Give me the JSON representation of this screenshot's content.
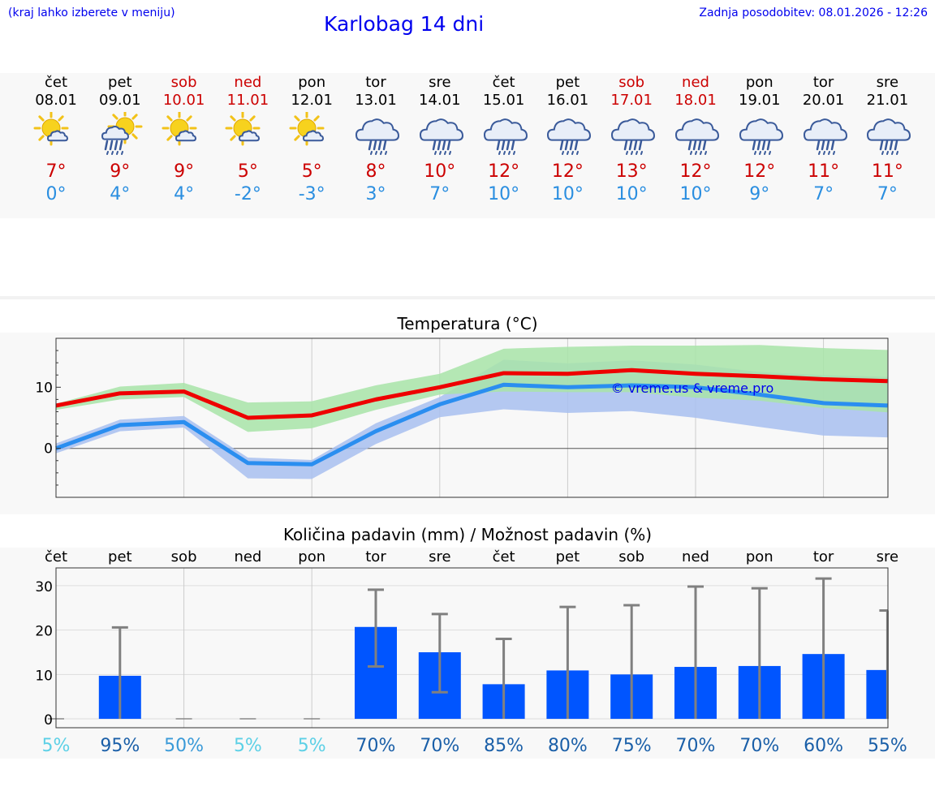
{
  "header": {
    "left_note": "(kraj lahko izberete v meniju)",
    "title": "Karlobag 14 dni",
    "updated": "Zadnja posodobitev: 08.01.2026 - 12:26"
  },
  "days": [
    {
      "name": "čet",
      "date": "08.01",
      "weekend": false,
      "icon": "sun-cloud-icon",
      "max": "7°",
      "min": "0°"
    },
    {
      "name": "pet",
      "date": "09.01",
      "weekend": false,
      "icon": "sun-cloud-rain-icon",
      "max": "9°",
      "min": "4°"
    },
    {
      "name": "sob",
      "date": "10.01",
      "weekend": true,
      "icon": "sun-cloud-icon",
      "max": "9°",
      "min": "4°"
    },
    {
      "name": "ned",
      "date": "11.01",
      "weekend": true,
      "icon": "sun-cloud-icon",
      "max": "5°",
      "min": "-2°"
    },
    {
      "name": "pon",
      "date": "12.01",
      "weekend": false,
      "icon": "sun-cloud-icon",
      "max": "5°",
      "min": "-3°"
    },
    {
      "name": "tor",
      "date": "13.01",
      "weekend": false,
      "icon": "rain-cloud-icon",
      "max": "8°",
      "min": "3°"
    },
    {
      "name": "sre",
      "date": "14.01",
      "weekend": false,
      "icon": "rain-cloud-icon",
      "max": "10°",
      "min": "7°"
    },
    {
      "name": "čet",
      "date": "15.01",
      "weekend": false,
      "icon": "rain-cloud-icon",
      "max": "12°",
      "min": "10°"
    },
    {
      "name": "pet",
      "date": "16.01",
      "weekend": false,
      "icon": "rain-cloud-icon",
      "max": "12°",
      "min": "10°"
    },
    {
      "name": "sob",
      "date": "17.01",
      "weekend": true,
      "icon": "rain-cloud-icon",
      "max": "13°",
      "min": "10°"
    },
    {
      "name": "ned",
      "date": "18.01",
      "weekend": true,
      "icon": "rain-cloud-icon",
      "max": "12°",
      "min": "10°"
    },
    {
      "name": "pon",
      "date": "19.01",
      "weekend": false,
      "icon": "rain-cloud-icon",
      "max": "12°",
      "min": "9°"
    },
    {
      "name": "tor",
      "date": "20.01",
      "weekend": false,
      "icon": "rain-cloud-icon",
      "max": "11°",
      "min": "7°"
    },
    {
      "name": "sre",
      "date": "21.01",
      "weekend": false,
      "icon": "rain-cloud-icon",
      "max": "11°",
      "min": "7°"
    }
  ],
  "colors": {
    "max_line": "#ee0000",
    "min_line": "#2a8ef0",
    "max_band": "#a8e4a8",
    "min_band": "#a8c0f0",
    "bar": "#0055ff",
    "error": "#808080",
    "weekend": "#cc0000",
    "link": "#0000ee"
  },
  "chart_data": [
    {
      "type": "line",
      "title": "Temperatura (°C)",
      "watermark": "© vreme.us & vreme.pro",
      "ylim": [
        -8,
        18
      ],
      "yticks": [
        0,
        10
      ],
      "series": [
        {
          "name": "max",
          "values": [
            7,
            9,
            9.3,
            5,
            5.4,
            8,
            10,
            12.3,
            12.2,
            12.8,
            12.2,
            11.8,
            11.3,
            11
          ]
        },
        {
          "name": "min",
          "values": [
            0,
            3.8,
            4.3,
            -2.4,
            -2.6,
            2.8,
            7.2,
            10.4,
            10,
            10.3,
            10,
            8.8,
            7.4,
            7
          ]
        },
        {
          "name": "max_range_low",
          "values": [
            6.3,
            8,
            8.4,
            2.7,
            3.3,
            6.3,
            8.8,
            9.3,
            9.2,
            9.2,
            8.3,
            7.8,
            6.6,
            5.9
          ]
        },
        {
          "name": "max_range_high",
          "values": [
            7.3,
            10.1,
            10.7,
            7.5,
            7.7,
            10.3,
            12.2,
            16.3,
            16.6,
            16.8,
            16.8,
            16.9,
            16.4,
            16.1
          ]
        },
        {
          "name": "min_range_low",
          "values": [
            -0.8,
            2.8,
            3.4,
            -4.9,
            -5,
            0.7,
            5.1,
            6.4,
            5.8,
            6.1,
            5,
            3.5,
            2.1,
            1.8
          ]
        },
        {
          "name": "min_range_high",
          "values": [
            0.8,
            4.7,
            5.3,
            -1.5,
            -1.9,
            4.1,
            8.4,
            14.5,
            13.9,
            14.4,
            13.7,
            12.5,
            12,
            11.7
          ]
        }
      ]
    },
    {
      "type": "bar",
      "title": "Količina padavin (mm) / Možnost padavin (%)",
      "categories": [
        "čet",
        "pet",
        "sob",
        "ned",
        "pon",
        "tor",
        "sre",
        "čet",
        "pet",
        "sob",
        "ned",
        "pon",
        "tor",
        "sre"
      ],
      "ylim": [
        -2,
        34
      ],
      "yticks": [
        0,
        10,
        20,
        30
      ],
      "values": [
        0,
        9.7,
        0,
        0,
        0,
        20.7,
        15,
        7.8,
        10.9,
        10,
        11.7,
        11.9,
        14.6,
        11
      ],
      "error_low": [
        0,
        0,
        0,
        0,
        0,
        11.8,
        6,
        0,
        0,
        0,
        0,
        0,
        0,
        0
      ],
      "error_high": [
        0,
        20.6,
        0,
        0,
        0,
        29.1,
        23.6,
        18,
        25.2,
        25.6,
        29.8,
        29.4,
        31.6,
        24.4
      ],
      "probability": [
        "5%",
        "95%",
        "50%",
        "5%",
        "5%",
        "70%",
        "70%",
        "85%",
        "80%",
        "75%",
        "70%",
        "70%",
        "60%",
        "55%"
      ],
      "probability_colors": [
        "#5cd0e6",
        "#1a5fa8",
        "#3a9ad8",
        "#5cd0e6",
        "#5cd0e6",
        "#1a5fa8",
        "#1a5fa8",
        "#1a5fa8",
        "#1a5fa8",
        "#1a5fa8",
        "#1a5fa8",
        "#1a5fa8",
        "#1a5fa8",
        "#1a5fa8"
      ]
    }
  ]
}
